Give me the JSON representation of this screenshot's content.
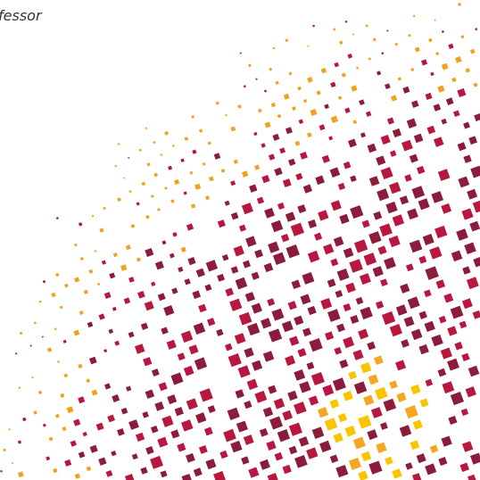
{
  "header": {
    "title": "fessor"
  }
}
